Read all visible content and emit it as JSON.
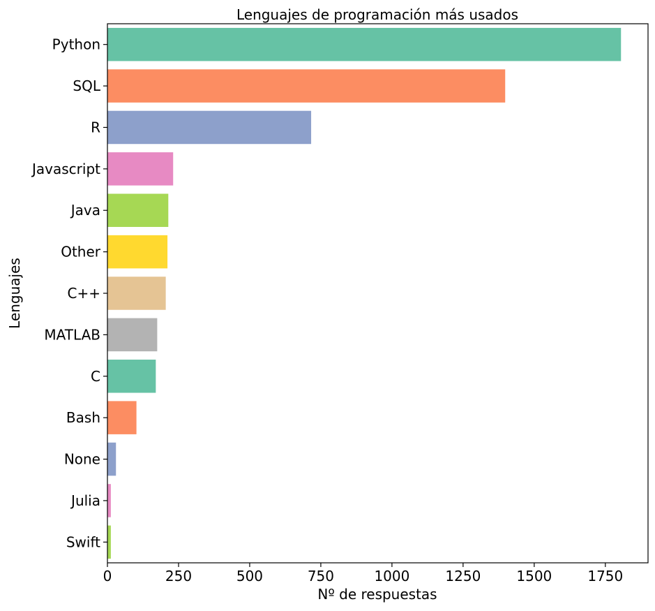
{
  "chart_data": {
    "type": "bar",
    "orientation": "horizontal",
    "title": "Lenguajes de programación más usados",
    "xlabel": "Nº de respuestas",
    "ylabel": "Lenguajes",
    "xlim": [
      0,
      1900
    ],
    "xticks": [
      0,
      250,
      500,
      750,
      1000,
      1250,
      1500,
      1750
    ],
    "grid": false,
    "categories": [
      "Python",
      "SQL",
      "R",
      "Javascript",
      "Java",
      "Other",
      "C++",
      "MATLAB",
      "C",
      "Bash",
      "None",
      "Julia",
      "Swift"
    ],
    "values": [
      1805,
      1398,
      716,
      231,
      214,
      211,
      205,
      175,
      170,
      102,
      30,
      12,
      12
    ],
    "colors": [
      "#66c2a5",
      "#fc8d62",
      "#8da0cb",
      "#e78ac3",
      "#a6d854",
      "#ffd92f",
      "#e5c494",
      "#b3b3b3",
      "#66c2a5",
      "#fc8d62",
      "#8da0cb",
      "#e78ac3",
      "#a6d854"
    ]
  }
}
